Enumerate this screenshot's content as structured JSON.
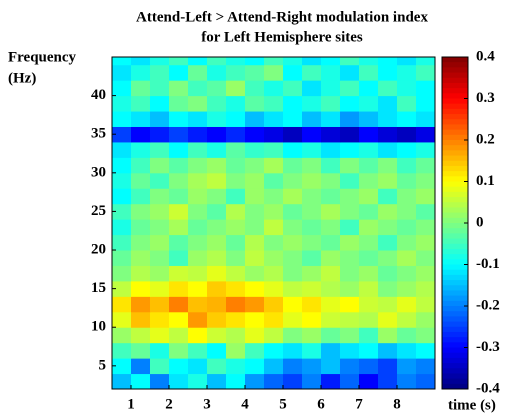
{
  "chart_data": {
    "type": "heatmap",
    "title": [
      "Attend-Left > Attend-Right modulation index",
      "for Left Hemisphere sites"
    ],
    "ylabel": [
      "Frequency",
      "(Hz)"
    ],
    "xlabel": "time (s)",
    "colormap": "jet",
    "x": [
      0.75,
      1.25,
      1.75,
      2.25,
      2.75,
      3.25,
      3.75,
      4.25,
      4.75,
      5.25,
      5.75,
      6.25,
      6.75,
      7.25,
      7.75,
      8.25,
      8.75
    ],
    "y": [
      3,
      5,
      7,
      9,
      11,
      13,
      15,
      17,
      19,
      21,
      23,
      25,
      27,
      29,
      31,
      33,
      35,
      37,
      39,
      41,
      43,
      45
    ],
    "z": [
      [
        -0.15,
        -0.1,
        -0.2,
        -0.12,
        -0.08,
        -0.15,
        -0.1,
        -0.18,
        -0.22,
        -0.25,
        -0.2,
        -0.28,
        -0.22,
        -0.3,
        -0.25,
        -0.2,
        -0.22
      ],
      [
        -0.1,
        -0.2,
        -0.05,
        -0.1,
        -0.12,
        -0.05,
        -0.08,
        -0.1,
        -0.15,
        -0.2,
        -0.18,
        -0.15,
        -0.2,
        -0.22,
        -0.25,
        -0.18,
        -0.2
      ],
      [
        -0.05,
        -0.02,
        -0.08,
        0.0,
        -0.05,
        -0.1,
        0.02,
        -0.05,
        -0.1,
        -0.12,
        -0.08,
        -0.15,
        -0.12,
        -0.1,
        -0.15,
        -0.12,
        -0.1
      ],
      [
        0.02,
        0.05,
        0.08,
        0.05,
        0.1,
        0.06,
        0.04,
        0.08,
        0.05,
        0.0,
        0.02,
        -0.02,
        0.0,
        -0.05,
        0.02,
        -0.02,
        0.0
      ],
      [
        0.08,
        0.15,
        0.12,
        0.1,
        0.18,
        0.14,
        0.12,
        0.1,
        0.12,
        0.08,
        0.1,
        0.06,
        0.05,
        0.04,
        0.08,
        0.05,
        0.02
      ],
      [
        0.12,
        0.18,
        0.15,
        0.2,
        0.15,
        0.16,
        0.2,
        0.18,
        0.14,
        0.1,
        0.12,
        0.08,
        0.1,
        0.06,
        0.05,
        0.08,
        0.05
      ],
      [
        0.05,
        0.1,
        0.08,
        0.12,
        0.1,
        0.14,
        0.12,
        0.1,
        0.08,
        0.05,
        0.06,
        0.04,
        0.02,
        0.05,
        0.0,
        0.02,
        0.04
      ],
      [
        0.0,
        0.04,
        0.02,
        0.06,
        0.05,
        0.08,
        0.05,
        0.02,
        0.04,
        0.0,
        0.02,
        0.05,
        0.0,
        0.02,
        -0.02,
        0.0,
        0.02
      ],
      [
        -0.02,
        0.02,
        0.0,
        -0.05,
        0.02,
        0.04,
        0.0,
        0.05,
        0.02,
        0.0,
        -0.03,
        0.02,
        0.0,
        -0.02,
        0.0,
        0.03,
        0.0
      ],
      [
        -0.05,
        0.0,
        0.02,
        -0.03,
        0.0,
        0.02,
        -0.02,
        0.04,
        0.0,
        0.02,
        0.0,
        -0.02,
        0.02,
        0.0,
        -0.05,
        0.0,
        0.02
      ],
      [
        -0.08,
        -0.02,
        0.0,
        0.03,
        -0.02,
        0.0,
        0.02,
        0.0,
        0.05,
        0.0,
        -0.02,
        0.0,
        -0.05,
        0.02,
        0.0,
        -0.02,
        0.0
      ],
      [
        -0.05,
        0.0,
        0.02,
        0.06,
        0.0,
        -0.03,
        0.04,
        0.0,
        0.02,
        -0.02,
        0.0,
        0.03,
        0.0,
        -0.02,
        0.02,
        0.0,
        -0.03
      ],
      [
        -0.1,
        -0.05,
        0.0,
        -0.02,
        0.02,
        0.0,
        -0.05,
        0.02,
        0.0,
        0.03,
        0.0,
        -0.02,
        0.0,
        0.02,
        -0.05,
        0.0,
        0.02
      ],
      [
        -0.08,
        -0.02,
        -0.05,
        0.0,
        0.03,
        0.05,
        0.0,
        0.02,
        -0.03,
        0.0,
        0.02,
        0.0,
        -0.05,
        0.0,
        0.02,
        -0.02,
        0.0
      ],
      [
        -0.1,
        -0.05,
        0.0,
        -0.03,
        0.0,
        0.02,
        -0.02,
        0.0,
        0.03,
        -0.02,
        0.0,
        -0.05,
        0.0,
        -0.03,
        0.0,
        -0.05,
        -0.02
      ],
      [
        -0.12,
        -0.08,
        -0.05,
        -0.1,
        -0.05,
        -0.08,
        -0.03,
        -0.06,
        -0.05,
        -0.1,
        -0.08,
        -0.12,
        -0.1,
        -0.08,
        -0.12,
        -0.1,
        -0.08
      ],
      [
        -0.25,
        -0.3,
        -0.28,
        -0.25,
        -0.28,
        -0.3,
        -0.27,
        -0.3,
        -0.32,
        -0.35,
        -0.3,
        -0.33,
        -0.35,
        -0.3,
        -0.33,
        -0.35,
        -0.32
      ],
      [
        -0.1,
        -0.12,
        -0.15,
        -0.1,
        -0.12,
        -0.08,
        -0.1,
        -0.15,
        -0.12,
        -0.1,
        -0.15,
        -0.12,
        -0.18,
        -0.15,
        -0.12,
        -0.1,
        -0.12
      ],
      [
        -0.08,
        -0.05,
        -0.1,
        -0.02,
        0.0,
        -0.05,
        -0.08,
        -0.03,
        -0.05,
        -0.1,
        -0.08,
        -0.05,
        -0.1,
        -0.08,
        -0.12,
        -0.05,
        -0.1
      ],
      [
        -0.1,
        -0.02,
        -0.05,
        0.0,
        -0.05,
        -0.03,
        0.02,
        -0.05,
        -0.08,
        -0.05,
        -0.12,
        -0.08,
        -0.05,
        -0.1,
        -0.05,
        -0.08,
        -0.1
      ],
      [
        -0.12,
        -0.08,
        -0.05,
        -0.1,
        -0.02,
        -0.08,
        -0.05,
        -0.03,
        0.0,
        -0.1,
        -0.05,
        -0.08,
        -0.12,
        -0.05,
        -0.1,
        -0.08,
        -0.05
      ],
      [
        -0.1,
        -0.12,
        -0.08,
        -0.05,
        -0.1,
        -0.05,
        -0.08,
        -0.1,
        -0.05,
        -0.08,
        -0.12,
        -0.1,
        -0.05,
        -0.08,
        -0.1,
        -0.12,
        -0.08
      ]
    ],
    "xlim": [
      0.5,
      9.0
    ],
    "xticks": [
      1,
      2,
      3,
      4,
      5,
      6,
      7,
      8
    ],
    "ylim": [
      2,
      45
    ],
    "yticks": [
      5,
      10,
      15,
      20,
      25,
      30,
      35,
      40
    ],
    "clim": [
      -0.4,
      0.4
    ],
    "cticks": [
      0.4,
      0.3,
      0.2,
      0.1,
      0,
      -0.1,
      -0.2,
      -0.3,
      -0.4
    ]
  }
}
